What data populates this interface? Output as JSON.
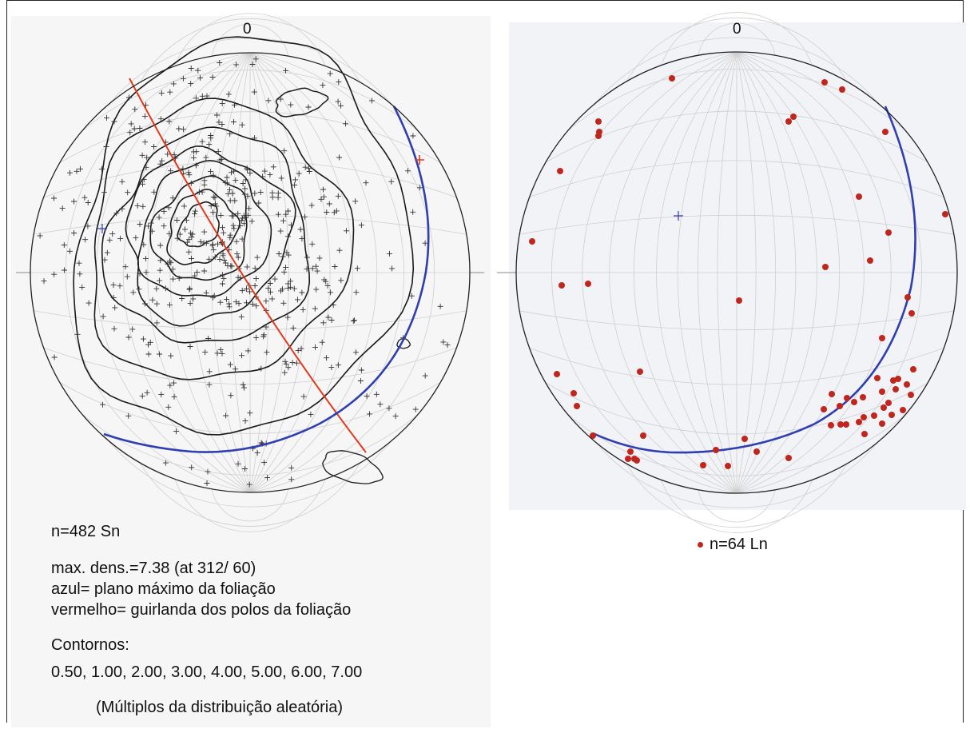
{
  "left_net": {
    "north_label": "0",
    "n_label": "n=482 Sn",
    "max_density": "max. dens.=7.38 (at 312/ 60)",
    "legend_blue": "azul= plano máximo da foliação",
    "legend_red": "vermelho= guirlanda dos polos da foliação",
    "contours_title": "Contornos:",
    "contour_levels": "0.50, 1.00, 2.00, 3.00, 4.00, 5.00, 6.00, 7.00",
    "contour_note": "(Múltiplos da distribuição aleatória)"
  },
  "right_net": {
    "north_label": "0",
    "n_label": "n=64 Ln"
  },
  "colors": {
    "great_circle_blue": "#2f3fb0",
    "girdle_red": "#e03a1e",
    "lineation_dot": "#c0261d",
    "contour": "#1a1a1a",
    "net_grid": "#cfcfcf",
    "pole_cross": "#333333"
  },
  "chart_data": [
    {
      "type": "scatter",
      "projection": "equal-area stereonet (lower hemisphere)",
      "series_label": "Sn",
      "count": 482,
      "max_density": 7.38,
      "max_density_at": "312/ 60",
      "contour_levels": [
        0.5,
        1.0,
        2.0,
        3.0,
        4.0,
        5.0,
        6.0,
        7.0
      ]
    },
    {
      "type": "scatter",
      "projection": "equal-area stereonet (lower hemisphere)",
      "series_label": "Ln",
      "count": 64
    }
  ]
}
